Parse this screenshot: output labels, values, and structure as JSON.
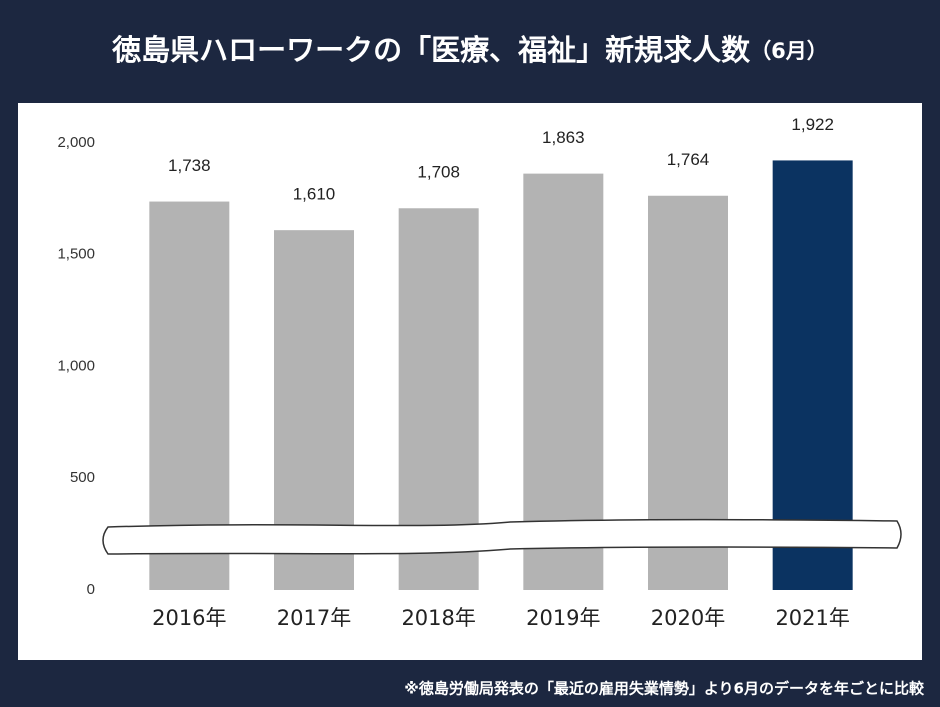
{
  "chart_data": {
    "type": "bar",
    "title": "徳島県ハローワークの「医療、福祉」新規求人数",
    "title_note": "（6月）",
    "categories": [
      "2016年",
      "2017年",
      "2018年",
      "2019年",
      "2020年",
      "2021年"
    ],
    "values": [
      1738,
      1610,
      1708,
      1863,
      1764,
      1922
    ],
    "value_labels": [
      "1,738",
      "1,610",
      "1,708",
      "1,863",
      "1,764",
      "1,922"
    ],
    "colors": [
      "#b3b3b3",
      "#b3b3b3",
      "#b3b3b3",
      "#b3b3b3",
      "#b3b3b3",
      "#0b3361"
    ],
    "ylim": [
      0,
      2000
    ],
    "yticks": [
      0,
      500,
      {
        "value": 1000,
        "label": "1,000"
      },
      {
        "value": 1500,
        "label": "1,500"
      },
      {
        "value": 2000,
        "label": "2,000"
      }
    ],
    "grid": false,
    "footnote": "※徳島労働局発表の「最近の雇用失業情勢」より6月のデータを年ごとに比較"
  }
}
